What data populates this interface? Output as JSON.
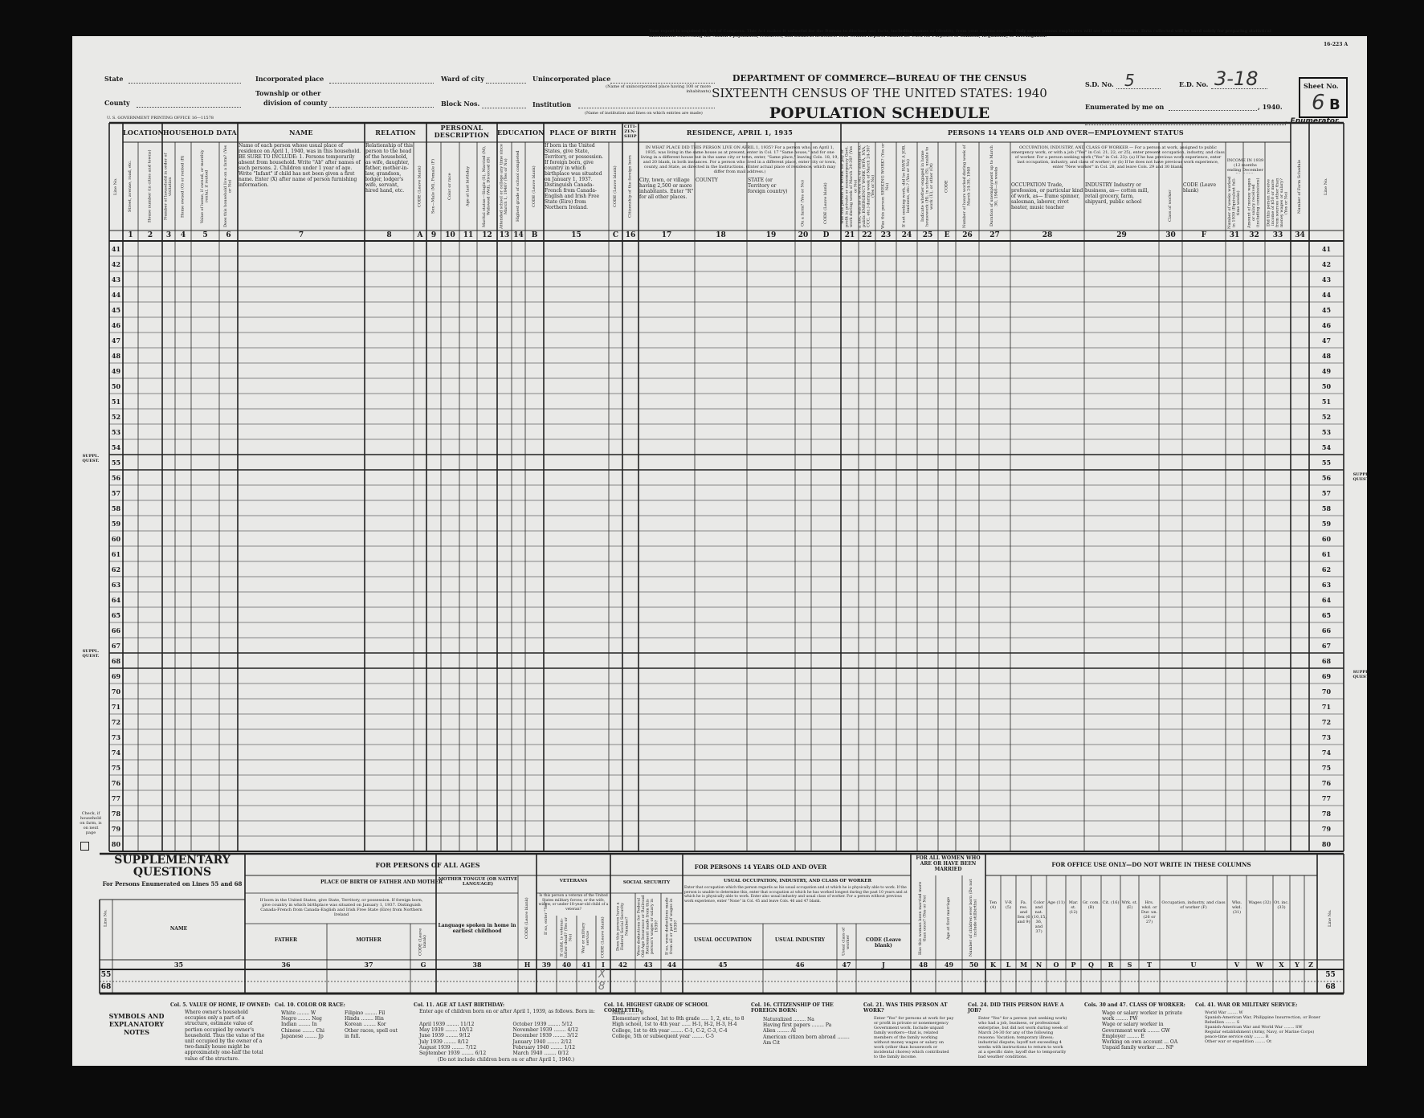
{
  "header": {
    "notice": "Your report is required by Act of Congress. This Act makes it unlawful for the Bureau to disclose any facts, including names or identity, from your census reports. Only sworn census employees will see your statements. Data collected will be used solely for preparing statistical information concerning the Nation's population, resources, and business activities. Your Census Reports Cannot Be Used for Purposes of Taxation, Regulation, or Investigation.",
    "form_no": "16-223 A",
    "department": "DEPARTMENT OF COMMERCE—BUREAU OF THE CENSUS",
    "census_title": "SIXTEENTH CENSUS OF THE UNITED STATES: 1940",
    "schedule_title": "POPULATION SCHEDULE",
    "state_label": "State",
    "county_label": "County",
    "incorporated_label": "Incorporated place",
    "township_label_1": "Township or other",
    "township_label_2": "division of county",
    "ward_label": "Ward of city",
    "block_label": "Block Nos.",
    "unincorporated_label": "Unincorporated place",
    "unincorporated_note": "(Name of unincorporated place having 100 or more inhabitants)",
    "institution_label": "Institution",
    "institution_note": "(Name of institution and lines on which entries are made)",
    "printing_office": "U. S. GOVERNMENT PRINTING OFFICE 16—11578",
    "sd_label": "S.D. No.",
    "sd_value": "5",
    "ed_label": "E.D. No.",
    "ed_value": "3-18",
    "sheet_label": "Sheet No.",
    "sheet_number": "6",
    "sheet_side": "B",
    "enumerated_label": "Enumerated by me on",
    "enumerated_year": ", 1940.",
    "enumerator_label": ", Enumerator."
  },
  "table": {
    "groups": [
      "LOCATION",
      "HOUSEHOLD DATA",
      "NAME",
      "RELATION",
      "PERSONAL DESCRIPTION",
      "EDUCATION",
      "PLACE OF BIRTH",
      "CITI-ZEN-SHIP",
      "RESIDENCE, APRIL 1, 1935",
      "PERSONS 14 YEARS OLD AND OVER—EMPLOYMENT STATUS"
    ],
    "subgroups": {
      "residence": "IN WHAT PLACE DID THIS PERSON LIVE ON APRIL 1, 1935? For a person who, on April 1, 1935, was living in the same house as at present, enter in Col. 17 \"Same house,\" and for one living in a different house but in the same city or town, enter, \"Same place,\" leaving Cols. 18, 19, and 20 blank, in both instances. For a person who lived in a different place, enter city or town, county, and State, as directed in the Instructions. (Enter actual place of residence, which may differ from mail address.)",
      "occupation": "OCCUPATION, INDUSTRY, AND CLASS OF WORKER — For a person at work, assigned to public emergency work, or with a job (\"Yes\" in Col. 21, 22, or 25), enter present occupation, industry, and class of worker. For a person seeking work (\"Yes\" in Col. 23): (a) If he has previous work experience, enter last occupation, industry, and class of worker; or (b) If he does not have previous work experience, enter \"New worker\" in Col. 28, and leave Cols. 29 and 30 blank.",
      "income": "INCOME IN 1939 (12 months ending December 31, 1939)"
    },
    "columns": [
      {
        "num": "",
        "desc": "Line No."
      },
      {
        "num": "1",
        "desc": "Street, avenue, road, etc."
      },
      {
        "num": "2",
        "desc": "House number (in cities and towns)"
      },
      {
        "num": "3",
        "desc": "Number of household in order of visitation"
      },
      {
        "num": "4",
        "desc": "Home owned (O) or rented (R)"
      },
      {
        "num": "5",
        "desc": "Value of home, if owned, or monthly rental, if rented"
      },
      {
        "num": "6",
        "desc": "Does this household live on a farm? (Yes or No)"
      },
      {
        "num": "7",
        "desc": "Name of each person whose usual place of residence on April 1, 1940, was in this household. BE SURE TO INCLUDE: 1. Persons temporarily absent from household. Write \"Ab\" after names of such persons. 2. Children under 1 year of age. Write \"Infant\" if child has not been given a first name. Enter (X) after name of person furnishing information."
      },
      {
        "num": "8",
        "desc": "Relationship of this person to the head of the household, as wife, daughter, father, mother-in-law, grandson, lodger, lodger's wife, servant, hired hand, etc."
      },
      {
        "num": "A",
        "desc": "CODE (Leave blank)"
      },
      {
        "num": "9",
        "desc": "Sex—Male (M), Female (F)"
      },
      {
        "num": "10",
        "desc": "Color or race"
      },
      {
        "num": "11",
        "desc": "Age at last birthday"
      },
      {
        "num": "12",
        "desc": "Marital status—Single (S), Married (M), Widowed (Wd), Divorced (D)"
      },
      {
        "num": "13",
        "desc": "Attended school or college any time since March 1, 1940? (Yes or No)"
      },
      {
        "num": "14",
        "desc": "Highest grade of school completed"
      },
      {
        "num": "B",
        "desc": "CODE (Leave blank)"
      },
      {
        "num": "15",
        "desc": "If born in the United States, give State, Territory, or possession. If foreign born, give country in which birthplace was situated on January 1, 1937. Distinguish Canada-French from Canada-English and Irish Free State (Eire) from Northern Ireland."
      },
      {
        "num": "C",
        "desc": "CODE (Leave blank)"
      },
      {
        "num": "16",
        "desc": "Citizenship of the foreign born"
      },
      {
        "num": "17",
        "desc": "City, town, or village having 2,500 or more inhabitants. Enter \"R\" for all other places."
      },
      {
        "num": "18",
        "desc": "COUNTY"
      },
      {
        "num": "19",
        "desc": "STATE (or Territory or foreign country)"
      },
      {
        "num": "20",
        "desc": "On a farm? (Yes or No)"
      },
      {
        "num": "D",
        "desc": "CODE (Leave blank)"
      },
      {
        "num": "21",
        "desc": "Was this person AT WORK for pay or profit in private or nonemergency Govt. work during week of March 24-30? (Yes or No)"
      },
      {
        "num": "22",
        "desc": "If not, was he at work on, or assigned to, public EMERGENCY WORK (WPA, NYA, CCC, etc.) during week of March 24-30? (Yes or No)"
      },
      {
        "num": "23",
        "desc": "Was this person SEEKING WORK? (Yes or No)"
      },
      {
        "num": "24",
        "desc": "If not seeking work, did he HAVE A JOB, business, etc.? (Yes or No)"
      },
      {
        "num": "25",
        "desc": "Indicate whether engaged in home housework (H), in school (S), unable to work (U), or other (Ot)"
      },
      {
        "num": "E",
        "desc": "CODE"
      },
      {
        "num": "26",
        "desc": "Number of hours worked during week of March 24-30, 1940"
      },
      {
        "num": "27",
        "desc": "Duration of unemployment up to March 30, 1940—in weeks"
      },
      {
        "num": "28",
        "desc": "OCCUPATION Trade, profession, or particular kind of work, as— frame spinner, salesman, laborer, rivet heater, music teacher"
      },
      {
        "num": "29",
        "desc": "INDUSTRY Industry or business, as— cotton mill, retail grocery, farm, shipyard, public school"
      },
      {
        "num": "30",
        "desc": "Class of worker"
      },
      {
        "num": "F",
        "desc": "CODE (Leave blank)"
      },
      {
        "num": "31",
        "desc": "Number of weeks worked in 1939 (Equivalent full-time weeks)"
      },
      {
        "num": "32",
        "desc": "Amount of money wages or salary received (including commissions)"
      },
      {
        "num": "33",
        "desc": "Did this person receive income of $50 or more from sources other than money wages or salary? (Yes or No)"
      },
      {
        "num": "34",
        "desc": "Number of Farm Schedule"
      },
      {
        "num": "",
        "desc": "Line No."
      }
    ],
    "line_numbers": [
      41,
      42,
      43,
      44,
      45,
      46,
      47,
      48,
      49,
      50,
      51,
      52,
      53,
      54,
      55,
      56,
      57,
      58,
      59,
      60,
      61,
      62,
      63,
      64,
      65,
      66,
      67,
      68,
      69,
      70,
      71,
      72,
      73,
      74,
      75,
      76,
      77,
      78,
      79,
      80
    ],
    "suppl_marker": "SUPPL. QUEST.",
    "farm_check_label": "Check, if household on farm, is on next page"
  },
  "supp": {
    "title_1": "SUPPLEMENTARY",
    "title_2": "QUESTIONS",
    "subtitle": "For Persons Enumerated on Lines 55 and 68",
    "all_ages": "FOR PERSONS OF ALL AGES",
    "birth_parents": "PLACE OF BIRTH OF FATHER AND MOTHER",
    "birth_note": "If born in the United States, give State, Territory, or possession. If foreign born, give country in which birthplace was situated on January 1, 1937. Distinguish Canada-French from Canada-English and Irish Free State (Eire) from Northern Ireland",
    "mother_tongue": "MOTHER TONGUE (OR NATIVE LANGUAGE)",
    "veterans": "VETERANS",
    "veterans_note": "Is this person a veteran of the United States military forces; or the wife, widow, or under-18-year-old child of a veteran?",
    "social_security": "SOCIAL SECURITY",
    "over14": "FOR PERSONS 14 YEARS OLD AND OVER",
    "usual_occ": "USUAL OCCUPATION, INDUSTRY, AND CLASS OF WORKER",
    "usual_note": "Enter that occupation which the person regards as his usual occupation and at which he is physically able to work. If the person is unable to determine this, enter that occupation at which he has worked longest during the past 10 years and at which he is physically able to work. Enter also usual industry and usual class of worker. For a person without previous work experience, enter \"None\" in Col. 45 and leave Cols. 46 and 47 blank.",
    "women": "FOR ALL WOMEN WHO ARE OR HAVE BEEN MARRIED",
    "office": "FOR OFFICE USE ONLY—DO NOT WRITE IN THESE COLUMNS",
    "columns": [
      {
        "num": "",
        "desc": "Line No."
      },
      {
        "num": "35",
        "desc": "NAME"
      },
      {
        "num": "36",
        "desc": "FATHER"
      },
      {
        "num": "37",
        "desc": "MOTHER"
      },
      {
        "num": "G",
        "desc": "CODE (Leave blank)"
      },
      {
        "num": "38",
        "desc": "Language spoken in home in earliest childhood"
      },
      {
        "num": "H",
        "desc": "CODE (Leave blank)"
      },
      {
        "num": "39",
        "desc": "If so, enter \"Yes\""
      },
      {
        "num": "40",
        "desc": "If child, is veteran-father dead? (Yes or No)"
      },
      {
        "num": "41",
        "desc": "War or military service"
      },
      {
        "num": "I",
        "desc": "CODE (Leave blank)"
      },
      {
        "num": "42",
        "desc": "Does this person have a Federal Social Security Number?"
      },
      {
        "num": "43",
        "desc": "Were deductions for Federal Old-Age Insurance or Railroad Retirement made from this person's wages or salary in 1939?"
      },
      {
        "num": "44",
        "desc": "If so, were deductions made from all or part of wages in 1939?"
      },
      {
        "num": "45",
        "desc": "USUAL OCCUPATION"
      },
      {
        "num": "46",
        "desc": "USUAL INDUSTRY"
      },
      {
        "num": "47",
        "desc": "Usual class of worker"
      },
      {
        "num": "J",
        "desc": "CODE (Leave blank)"
      },
      {
        "num": "48",
        "desc": "Has this woman been married more than once? (Yes or No)"
      },
      {
        "num": "49",
        "desc": "Age at first marriage"
      },
      {
        "num": "50",
        "desc": "Number of children ever born (Do not include stillbirths)"
      },
      {
        "num": "K",
        "desc": "Ten (4)"
      },
      {
        "num": "L",
        "desc": "V-R (5)"
      },
      {
        "num": "M",
        "desc": "Fa. res. and Sex (6 and 9)"
      },
      {
        "num": "N",
        "desc": "Color and nat. (10,15, 36, and 37)"
      },
      {
        "num": "O",
        "desc": "Age (11)"
      },
      {
        "num": "P",
        "desc": "Mar. st. (12)"
      },
      {
        "num": "Q",
        "desc": "Gr. com. (B)"
      },
      {
        "num": "R",
        "desc": "Cit. (16)"
      },
      {
        "num": "S",
        "desc": "Wrk. st. (E)"
      },
      {
        "num": "T",
        "desc": "Hrs. wkd. or Dur. un. (26 or 27)"
      },
      {
        "num": "U",
        "desc": "Occupation, industry, and class of worker (F)"
      },
      {
        "num": "V",
        "desc": "Wks. wkd. (31)"
      },
      {
        "num": "W",
        "desc": "Wages (32)"
      },
      {
        "num": "X",
        "desc": "Ot. inc. (33)"
      },
      {
        "num": "Y",
        "desc": ""
      },
      {
        "num": "Z",
        "desc": ""
      },
      {
        "num": "",
        "desc": "Line No."
      }
    ],
    "rows": [
      "55",
      "68"
    ],
    "handwritten_marks": [
      "X",
      "8"
    ]
  },
  "notes": {
    "symbols_title": "SYMBOLS AND EXPLANATORY NOTES",
    "col5_title": "Col. 5. VALUE OF HOME, IF OWNED:",
    "col5_text": "Where owner's household occupies only a part of a structure, estimate value of portion occupied by owner's household. Thus the value of the unit occupied by the owner of a two-family house might be approximately one-half the total value of the structure.",
    "col10_title": "Col. 10. COLOR OR RACE:",
    "col10_items": [
      "White ........ W",
      "Negro ........ Neg",
      "Indian ........ In",
      "Chinese ........ Chi",
      "Japanese ........ Jp",
      "Filipino ........ Fil",
      "Hindu ........ Hin",
      "Korean ........ Kor",
      "Other races, spell out in full."
    ],
    "col11_title": "Col. 11. AGE AT LAST BIRTHDAY:",
    "col11_text": "Enter age of children born on or after April 1, 1939, as follows. Born in:",
    "col11_items": [
      "April 1939 ........ 11/12",
      "May 1939 ........ 10/12",
      "June 1939 ........ 9/12",
      "July 1939 ........ 8/12",
      "August 1939 ........ 7/12",
      "September 1939 ........ 6/12",
      "October 1939 ........ 5/12",
      "November 1939 ........ 4/12",
      "December 1939 ........ 3/12",
      "January 1940 ........ 2/12",
      "February 1940 ........ 1/12",
      "March 1940 ........ 0/12"
    ],
    "col11_footer": "(Do not include children born on or after April 1, 1940.)",
    "col14_title": "Col. 14. HIGHEST GRADE OF SCHOOL COMPLETED:",
    "col14_items": [
      "None ........ 0",
      "Elementary school, 1st to 8th grade ..... 1, 2, etc., to 8",
      "High school, 1st to 4th year ...... H-1, H-2, H-3, H-4",
      "College, 1st to 4th year ........ C-1, C-2, C-3, C-4",
      "College, 5th or subsequent year ........ C-5"
    ],
    "col16_title": "Col. 16. CITIZENSHIP OF THE FOREIGN BORN:",
    "col16_items": [
      "Naturalized ........ Na",
      "Having first papers ........ Pa",
      "Alien ........ Al",
      "American citizen born abroad ........ Am Cit"
    ],
    "col21_title": "Col. 21. WAS THIS PERSON AT WORK?",
    "col21_text": "Enter \"Yes\" for persons at work for pay or profit in private or nonemergency Government work. Include unpaid family workers—that is, related members of the family working without money wages or salary on work (other than housework or incidental chores) which contributed to the family income.",
    "col24_title": "Col. 24. DID THIS PERSON HAVE A JOB?",
    "col24_text": "Enter \"Yes\" for a person (not seeking work) who had a job, business, or professional enterprise, but did not work during week of March 24-30 for any of the following reasons: Vacation; temporary illness; industrial dispute; layoff not exceeding 4 weeks with instructions to return to work at a specific date; layoff due to temporarily bad weather conditions.",
    "col30_title": "Cols. 30 and 47. CLASS OF WORKER:",
    "col30_items": [
      "Wage or salary worker in private work ........ PW",
      "Wage or salary worker in Government work ........ GW",
      "Employer ........ E",
      "Working on own account ... OA",
      "Unpaid family worker ..... NP"
    ],
    "col41_title": "Col. 41. WAR OR MILITARY SERVICE:",
    "col41_items": [
      "World War ........ W",
      "Spanish-American War, Philippine Insurrection, or Boxer Rebellion ........ S",
      "Spanish-American War and World War ........ SW",
      "Regular establishment (Army, Navy, or Marine Corps) peace-time service only ........ R",
      "Other war or expedition ........ Ot"
    ]
  }
}
